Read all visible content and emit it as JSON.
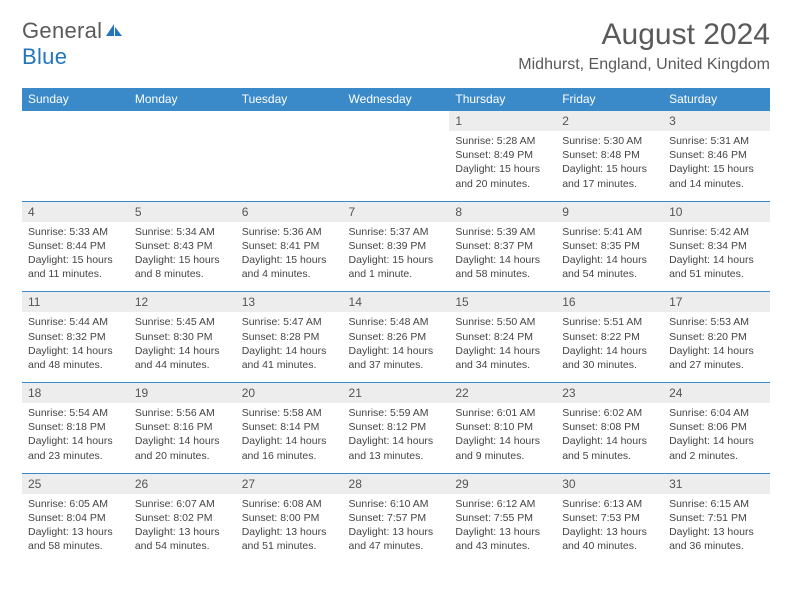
{
  "logo": {
    "text_gray": "General",
    "text_blue": "Blue",
    "icon_color": "#2176bd"
  },
  "title": "August 2024",
  "location": "Midhurst, England, United Kingdom",
  "colors": {
    "header_bg": "#3a8ac9",
    "header_text": "#ffffff",
    "daynum_bg": "#ededed",
    "divider": "#3a8ac9",
    "body_text": "#444444",
    "title_text": "#5a5a5a"
  },
  "day_names": [
    "Sunday",
    "Monday",
    "Tuesday",
    "Wednesday",
    "Thursday",
    "Friday",
    "Saturday"
  ],
  "weeks": [
    [
      {
        "n": "",
        "d": ""
      },
      {
        "n": "",
        "d": ""
      },
      {
        "n": "",
        "d": ""
      },
      {
        "n": "",
        "d": ""
      },
      {
        "n": "1",
        "d": "Sunrise: 5:28 AM\nSunset: 8:49 PM\nDaylight: 15 hours and 20 minutes."
      },
      {
        "n": "2",
        "d": "Sunrise: 5:30 AM\nSunset: 8:48 PM\nDaylight: 15 hours and 17 minutes."
      },
      {
        "n": "3",
        "d": "Sunrise: 5:31 AM\nSunset: 8:46 PM\nDaylight: 15 hours and 14 minutes."
      }
    ],
    [
      {
        "n": "4",
        "d": "Sunrise: 5:33 AM\nSunset: 8:44 PM\nDaylight: 15 hours and 11 minutes."
      },
      {
        "n": "5",
        "d": "Sunrise: 5:34 AM\nSunset: 8:43 PM\nDaylight: 15 hours and 8 minutes."
      },
      {
        "n": "6",
        "d": "Sunrise: 5:36 AM\nSunset: 8:41 PM\nDaylight: 15 hours and 4 minutes."
      },
      {
        "n": "7",
        "d": "Sunrise: 5:37 AM\nSunset: 8:39 PM\nDaylight: 15 hours and 1 minute."
      },
      {
        "n": "8",
        "d": "Sunrise: 5:39 AM\nSunset: 8:37 PM\nDaylight: 14 hours and 58 minutes."
      },
      {
        "n": "9",
        "d": "Sunrise: 5:41 AM\nSunset: 8:35 PM\nDaylight: 14 hours and 54 minutes."
      },
      {
        "n": "10",
        "d": "Sunrise: 5:42 AM\nSunset: 8:34 PM\nDaylight: 14 hours and 51 minutes."
      }
    ],
    [
      {
        "n": "11",
        "d": "Sunrise: 5:44 AM\nSunset: 8:32 PM\nDaylight: 14 hours and 48 minutes."
      },
      {
        "n": "12",
        "d": "Sunrise: 5:45 AM\nSunset: 8:30 PM\nDaylight: 14 hours and 44 minutes."
      },
      {
        "n": "13",
        "d": "Sunrise: 5:47 AM\nSunset: 8:28 PM\nDaylight: 14 hours and 41 minutes."
      },
      {
        "n": "14",
        "d": "Sunrise: 5:48 AM\nSunset: 8:26 PM\nDaylight: 14 hours and 37 minutes."
      },
      {
        "n": "15",
        "d": "Sunrise: 5:50 AM\nSunset: 8:24 PM\nDaylight: 14 hours and 34 minutes."
      },
      {
        "n": "16",
        "d": "Sunrise: 5:51 AM\nSunset: 8:22 PM\nDaylight: 14 hours and 30 minutes."
      },
      {
        "n": "17",
        "d": "Sunrise: 5:53 AM\nSunset: 8:20 PM\nDaylight: 14 hours and 27 minutes."
      }
    ],
    [
      {
        "n": "18",
        "d": "Sunrise: 5:54 AM\nSunset: 8:18 PM\nDaylight: 14 hours and 23 minutes."
      },
      {
        "n": "19",
        "d": "Sunrise: 5:56 AM\nSunset: 8:16 PM\nDaylight: 14 hours and 20 minutes."
      },
      {
        "n": "20",
        "d": "Sunrise: 5:58 AM\nSunset: 8:14 PM\nDaylight: 14 hours and 16 minutes."
      },
      {
        "n": "21",
        "d": "Sunrise: 5:59 AM\nSunset: 8:12 PM\nDaylight: 14 hours and 13 minutes."
      },
      {
        "n": "22",
        "d": "Sunrise: 6:01 AM\nSunset: 8:10 PM\nDaylight: 14 hours and 9 minutes."
      },
      {
        "n": "23",
        "d": "Sunrise: 6:02 AM\nSunset: 8:08 PM\nDaylight: 14 hours and 5 minutes."
      },
      {
        "n": "24",
        "d": "Sunrise: 6:04 AM\nSunset: 8:06 PM\nDaylight: 14 hours and 2 minutes."
      }
    ],
    [
      {
        "n": "25",
        "d": "Sunrise: 6:05 AM\nSunset: 8:04 PM\nDaylight: 13 hours and 58 minutes."
      },
      {
        "n": "26",
        "d": "Sunrise: 6:07 AM\nSunset: 8:02 PM\nDaylight: 13 hours and 54 minutes."
      },
      {
        "n": "27",
        "d": "Sunrise: 6:08 AM\nSunset: 8:00 PM\nDaylight: 13 hours and 51 minutes."
      },
      {
        "n": "28",
        "d": "Sunrise: 6:10 AM\nSunset: 7:57 PM\nDaylight: 13 hours and 47 minutes."
      },
      {
        "n": "29",
        "d": "Sunrise: 6:12 AM\nSunset: 7:55 PM\nDaylight: 13 hours and 43 minutes."
      },
      {
        "n": "30",
        "d": "Sunrise: 6:13 AM\nSunset: 7:53 PM\nDaylight: 13 hours and 40 minutes."
      },
      {
        "n": "31",
        "d": "Sunrise: 6:15 AM\nSunset: 7:51 PM\nDaylight: 13 hours and 36 minutes."
      }
    ]
  ]
}
